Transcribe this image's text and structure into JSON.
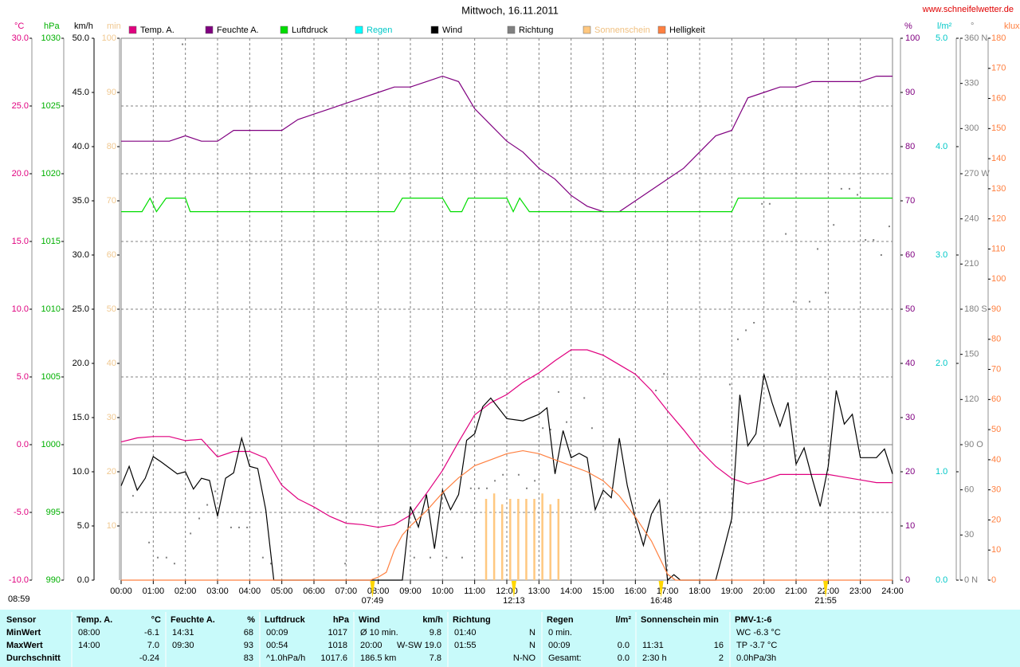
{
  "chart_data": {
    "type": "line",
    "title": "Mittwoch, 16.11.2011",
    "site": "www.schneifelwetter.de",
    "day_length": "08:59",
    "xlim": [
      0,
      24
    ],
    "xticks": [
      {
        "value": 0,
        "label": "00:00"
      },
      {
        "value": 1,
        "label": "01:00"
      },
      {
        "value": 2,
        "label": "02:00"
      },
      {
        "value": 3,
        "label": "03:00"
      },
      {
        "value": 4,
        "label": "04:00"
      },
      {
        "value": 5,
        "label": "05:00"
      },
      {
        "value": 6,
        "label": "06:00"
      },
      {
        "value": 7,
        "label": "07:00"
      },
      {
        "value": 8,
        "label": "08:00"
      },
      {
        "value": 9,
        "label": "09:00"
      },
      {
        "value": 10,
        "label": "10:00"
      },
      {
        "value": 11,
        "label": "11:00"
      },
      {
        "value": 12,
        "label": "12:00"
      },
      {
        "value": 13,
        "label": "13:00"
      },
      {
        "value": 14,
        "label": "14:00"
      },
      {
        "value": 15,
        "label": "15:00"
      },
      {
        "value": 16,
        "label": "16:00"
      },
      {
        "value": 17,
        "label": "17:00"
      },
      {
        "value": 18,
        "label": "18:00"
      },
      {
        "value": 19,
        "label": "19:00"
      },
      {
        "value": 20,
        "label": "20:00"
      },
      {
        "value": 21,
        "label": "21:00"
      },
      {
        "value": 22,
        "label": "22:00"
      },
      {
        "value": 23,
        "label": "23:00"
      },
      {
        "value": 24,
        "label": "24:00"
      }
    ],
    "grid": true,
    "axes": {
      "temp": {
        "unit": "°C",
        "color": "#e0007f",
        "lim": [
          -10,
          30
        ],
        "ticks": [
          {
            "value": -10,
            "label": "-10.0"
          },
          {
            "value": -5,
            "label": "-5.0"
          },
          {
            "value": 0,
            "label": "0.0"
          },
          {
            "value": 5,
            "label": "5.0"
          },
          {
            "value": 10,
            "label": "10.0"
          },
          {
            "value": 15,
            "label": "15.0"
          },
          {
            "value": 20,
            "label": "20.0"
          },
          {
            "value": 25,
            "label": "25.0"
          },
          {
            "value": 30,
            "label": "30.0"
          }
        ]
      },
      "hpa": {
        "unit": "hPa",
        "color": "#00b000",
        "lim": [
          990,
          1030
        ],
        "ticks": [
          990,
          995,
          1000,
          1005,
          1010,
          1015,
          1020,
          1025,
          1030
        ]
      },
      "wind": {
        "unit": "km/h",
        "color": "#000000",
        "lim": [
          0,
          50
        ],
        "ticks": [
          {
            "value": 0,
            "label": "0.0"
          },
          {
            "value": 5,
            "label": "5.0"
          },
          {
            "value": 10,
            "label": "10.0"
          },
          {
            "value": 15,
            "label": "15.0"
          },
          {
            "value": 20,
            "label": "20.0"
          },
          {
            "value": 25,
            "label": "25.0"
          },
          {
            "value": 30,
            "label": "30.0"
          },
          {
            "value": 35,
            "label": "35.0"
          },
          {
            "value": 40,
            "label": "40.0"
          },
          {
            "value": 45,
            "label": "45.0"
          },
          {
            "value": 50,
            "label": "50.0"
          }
        ]
      },
      "min": {
        "unit": "min",
        "color": "#f0c890",
        "lim": [
          0,
          100
        ],
        "ticks": [
          10,
          20,
          30,
          40,
          50,
          60,
          70,
          80,
          90,
          100
        ]
      },
      "hum": {
        "unit": "%",
        "color": "#800080",
        "lim": [
          0,
          100
        ],
        "ticks": [
          0,
          10,
          20,
          30,
          40,
          50,
          60,
          70,
          80,
          90,
          100
        ]
      },
      "rain": {
        "unit": "l/m²",
        "color": "#00c8c8",
        "lim": [
          0,
          5
        ],
        "ticks": [
          {
            "value": 0,
            "label": "0.0"
          },
          {
            "value": 1,
            "label": "1.0"
          },
          {
            "value": 2,
            "label": "2.0"
          },
          {
            "value": 3,
            "label": "3.0"
          },
          {
            "value": 4,
            "label": "4.0"
          },
          {
            "value": 5,
            "label": "5.0"
          }
        ]
      },
      "deg": {
        "unit": "°",
        "color": "#808080",
        "lim": [
          0,
          360
        ],
        "ticks": [
          {
            "value": 0,
            "label": "0 N"
          },
          30,
          60,
          {
            "value": 90,
            "label": "90 O"
          },
          120,
          150,
          {
            "value": 180,
            "label": "180 S"
          },
          210,
          240,
          {
            "value": 270,
            "label": "270 W"
          },
          300,
          330,
          {
            "value": 360,
            "label": "360 N"
          }
        ]
      },
      "klux": {
        "unit": "klux",
        "color": "#ff8040",
        "lim": [
          0,
          180
        ],
        "ticks": [
          0,
          10,
          20,
          30,
          40,
          50,
          60,
          70,
          80,
          90,
          100,
          110,
          120,
          130,
          140,
          150,
          160,
          170,
          180
        ]
      }
    },
    "series": [
      {
        "name": "Temp. A.",
        "color": "#e0007f",
        "axis": "temp",
        "type": "line",
        "x": [
          0,
          0.5,
          1,
          1.5,
          2,
          2.5,
          3,
          3.5,
          4,
          4.5,
          5,
          5.5,
          6,
          6.5,
          7,
          7.5,
          8,
          8.5,
          9,
          9.5,
          10,
          10.5,
          11,
          11.5,
          12,
          12.5,
          13,
          13.5,
          14,
          14.5,
          15,
          15.5,
          16,
          16.5,
          17,
          17.5,
          18,
          18.5,
          19,
          19.5,
          20,
          20.5,
          21,
          21.5,
          22,
          22.5,
          23,
          23.5,
          24
        ],
        "values": [
          0.2,
          0.5,
          0.6,
          0.6,
          0.3,
          0.4,
          -0.9,
          -0.5,
          -0.5,
          -1.0,
          -3.0,
          -4.0,
          -4.6,
          -5.3,
          -5.8,
          -5.9,
          -6.1,
          -5.9,
          -5.2,
          -3.6,
          -1.9,
          0.2,
          2.2,
          3.1,
          3.7,
          4.6,
          5.3,
          6.2,
          7.0,
          7.0,
          6.6,
          5.9,
          5.2,
          4.0,
          2.5,
          1.1,
          -0.4,
          -1.6,
          -2.5,
          -2.9,
          -2.6,
          -2.2,
          -2.2,
          -2.2,
          -2.2,
          -2.4,
          -2.6,
          -2.8,
          -2.8
        ]
      },
      {
        "name": "Feuchte A.",
        "color": "#800080",
        "axis": "hum",
        "type": "line",
        "x": [
          0,
          0.5,
          1,
          1.5,
          2,
          2.5,
          3,
          3.5,
          4,
          4.5,
          5,
          5.5,
          6,
          6.5,
          7,
          7.5,
          8,
          8.5,
          9,
          9.5,
          10,
          10.5,
          11,
          11.5,
          12,
          12.5,
          13,
          13.5,
          14,
          14.5,
          15,
          15.5,
          16,
          16.5,
          17,
          17.5,
          18,
          18.5,
          19,
          19.5,
          20,
          20.5,
          21,
          21.5,
          22,
          22.5,
          23,
          23.5,
          24
        ],
        "values": [
          81,
          81,
          81,
          81,
          82,
          81,
          81,
          83,
          83,
          83,
          83,
          85,
          86,
          87,
          88,
          89,
          90,
          91,
          91,
          92,
          93,
          92,
          87,
          84,
          81,
          79,
          76,
          74,
          71,
          69,
          68,
          68,
          70,
          72,
          74,
          76,
          79,
          82,
          83,
          89,
          90,
          91,
          91,
          92,
          92,
          92,
          92,
          93,
          93
        ]
      },
      {
        "name": "Luftdruck",
        "color": "#00dd00",
        "axis": "hpa",
        "type": "line",
        "x": [
          0,
          0.65,
          0.9,
          1.1,
          1.4,
          2.0,
          2.15,
          8.5,
          8.75,
          10.0,
          10.25,
          10.6,
          10.8,
          12.0,
          12.2,
          12.4,
          12.7,
          19.0,
          19.2,
          24
        ],
        "values": [
          1017.2,
          1017.2,
          1018.2,
          1017.2,
          1018.2,
          1018.2,
          1017.2,
          1017.2,
          1018.2,
          1018.2,
          1017.2,
          1017.2,
          1018.2,
          1018.2,
          1017.2,
          1018.2,
          1017.2,
          1017.2,
          1018.2,
          1018.2
        ]
      },
      {
        "name": "Regen",
        "color": "#00ffff",
        "text_color": "#00c8c8",
        "axis": "rain",
        "type": "line",
        "x": [],
        "values": []
      },
      {
        "name": "Wind",
        "color": "#000000",
        "axis": "wind",
        "type": "line",
        "x": [
          0,
          0.25,
          0.5,
          0.75,
          1,
          1.25,
          1.75,
          2,
          2.25,
          2.5,
          2.75,
          3,
          3.25,
          3.5,
          3.75,
          4,
          4.25,
          4.5,
          4.75,
          8.75,
          9,
          9.25,
          9.5,
          9.75,
          10,
          10.25,
          10.5,
          10.75,
          11,
          11.25,
          11.5,
          12,
          12.5,
          13,
          13.25,
          13.5,
          13.75,
          14,
          14.25,
          14.5,
          14.75,
          15,
          15.25,
          15.5,
          15.75,
          16,
          16.25,
          16.5,
          16.75,
          17,
          17.2,
          17.4,
          18.5,
          18.75,
          19,
          19.25,
          19.5,
          19.75,
          20,
          20.25,
          20.5,
          20.75,
          21,
          21.25,
          21.5,
          21.75,
          22,
          22.25,
          22.5,
          22.75,
          23,
          23.5,
          23.75,
          24
        ],
        "values": [
          8.7,
          10.5,
          8.3,
          9.4,
          11.4,
          10.9,
          9.8,
          10,
          8.4,
          9.4,
          9.2,
          5.9,
          9.4,
          9.9,
          13.1,
          10.5,
          10.3,
          6.5,
          0,
          0,
          6.8,
          4.9,
          7.9,
          2.9,
          8.3,
          6.5,
          7.9,
          12.9,
          13.5,
          16,
          16.8,
          14.9,
          14.7,
          15.3,
          15.9,
          9.8,
          13.8,
          11.3,
          11.7,
          11.3,
          6.5,
          8.3,
          7.6,
          13.1,
          8.7,
          5.7,
          3.2,
          6.1,
          7.4,
          0,
          0.5,
          0,
          0,
          2.8,
          5.7,
          17.1,
          12.4,
          13.5,
          19.0,
          16.4,
          14.2,
          16.4,
          10.7,
          12.2,
          9.4,
          6.8,
          10.5,
          17.5,
          14.4,
          15.3,
          11.3,
          11.3,
          12.1,
          9.8
        ]
      },
      {
        "name": "Richtung",
        "color": "#808080",
        "axis": "deg",
        "type": "scatter",
        "x": [
          0.37,
          0.87,
          1.14,
          1.41,
          1.66,
          1.91,
          2.16,
          2.43,
          2.68,
          2.93,
          3.42,
          3.67,
          3.92,
          4.41,
          4.66,
          6.97,
          9.12,
          9.62,
          10.12,
          10.61,
          10.88,
          11.13,
          11.38,
          11.63,
          11.88,
          12.37,
          12.62,
          12.87,
          13.12,
          13.36,
          13.61,
          13.86,
          14.41,
          14.65,
          16.64,
          16.89,
          18.94,
          19.19,
          19.44,
          19.69,
          19.94,
          20.18,
          20.68,
          20.93,
          21.42,
          21.67,
          21.92,
          22.17,
          22.41,
          22.66,
          22.91,
          23.16,
          23.41,
          23.65,
          23.9
        ],
        "values": [
          56,
          25,
          15,
          15,
          11,
          356,
          31,
          41,
          50,
          59,
          35,
          35,
          35,
          15,
          11,
          11,
          15,
          15,
          15,
          15,
          61,
          61,
          61,
          66,
          70,
          70,
          61,
          66,
          101,
          100,
          125,
          105,
          121,
          101,
          126,
          137,
          130,
          160,
          166,
          171,
          250,
          250,
          230,
          185,
          185,
          220,
          191,
          236,
          260,
          260,
          256,
          226,
          226,
          216,
          235
        ]
      },
      {
        "name": "Sonnenschein",
        "color": "#ffc880",
        "text_color": "#f0c080",
        "axis": "min",
        "type": "bar",
        "x": [
          11.35,
          11.6,
          11.85,
          12.1,
          12.35,
          12.6,
          12.85,
          13.1,
          13.35,
          13.6
        ],
        "values": [
          15,
          16,
          14,
          15,
          15,
          15,
          15,
          16,
          14,
          15
        ]
      },
      {
        "name": "Helligkeit",
        "color": "#ff8040",
        "axis": "klux",
        "type": "line",
        "x": [
          0,
          7.75,
          8,
          8.25,
          8.5,
          8.75,
          9,
          9.5,
          10,
          10.5,
          11,
          11.5,
          12,
          12.5,
          13,
          13.5,
          14,
          14.5,
          15,
          15.5,
          16,
          16.5,
          17,
          17.25,
          24
        ],
        "values": [
          0,
          0,
          1,
          2.6,
          10,
          15,
          18,
          23,
          29,
          34,
          38,
          40,
          42,
          43,
          42,
          40,
          38,
          36,
          33,
          28,
          21,
          13,
          2,
          0,
          0
        ]
      }
    ],
    "sun_marks": [
      {
        "x": 7.82,
        "label": "07:49"
      },
      {
        "x": 12.22,
        "label": "12:13"
      },
      {
        "x": 16.8,
        "label": "16:48"
      },
      {
        "x": 21.92,
        "label": "21:55"
      }
    ]
  },
  "table": {
    "corner": "Sensor",
    "columns": [
      {
        "name": "Temp. A.",
        "unit": "°C"
      },
      {
        "name": "Feuchte A.",
        "unit": "%"
      },
      {
        "name": "Luftdruck",
        "unit": "hPa"
      },
      {
        "name": "Wind",
        "unit": "km/h"
      },
      {
        "name": "Richtung"
      },
      {
        "name": "Regen",
        "unit": "l/m²"
      },
      {
        "name": "Sonnenschein min"
      },
      {
        "name": "PMV-1:-6"
      }
    ],
    "rows": [
      {
        "label": "MinWert",
        "cells": [
          {
            "l": "08:00",
            "r": "-6.1"
          },
          {
            "l": "14:31",
            "r": "68"
          },
          {
            "l": "00:09",
            "r": "1017"
          },
          {
            "l": "Ø 10 min.",
            "r": "9.8"
          },
          {
            "l": "01:40",
            "r": "N"
          },
          {
            "l": "0 min."
          },
          {},
          {
            "l": "WC -6.3 °C"
          }
        ]
      },
      {
        "label": "MaxWert",
        "cells": [
          {
            "l": "14:00",
            "r": "7.0"
          },
          {
            "l": "09:30",
            "r": "93"
          },
          {
            "l": "00:54",
            "r": "1018"
          },
          {
            "l": "20:00",
            "r": "W-SW 19.0"
          },
          {
            "l": "01:55",
            "r": "N"
          },
          {
            "l": "00:09",
            "r": "0.0"
          },
          {
            "l": "11:31",
            "r": "16"
          },
          {
            "l": "TP -3.7 °C"
          }
        ]
      },
      {
        "label": "Durchschnitt",
        "cells": [
          {
            "r": "-0.24"
          },
          {
            "r": "83"
          },
          {
            "l": "^1.0hPa/h",
            "r": "1017.6"
          },
          {
            "l": "186.5 km",
            "r": "7.8"
          },
          {
            "r": "N-NO"
          },
          {
            "l": "Gesamt:",
            "r": "0.0"
          },
          {
            "l": "2:30 h",
            "r": "2"
          },
          {
            "l": "0.0hPa/3h"
          }
        ]
      }
    ]
  }
}
